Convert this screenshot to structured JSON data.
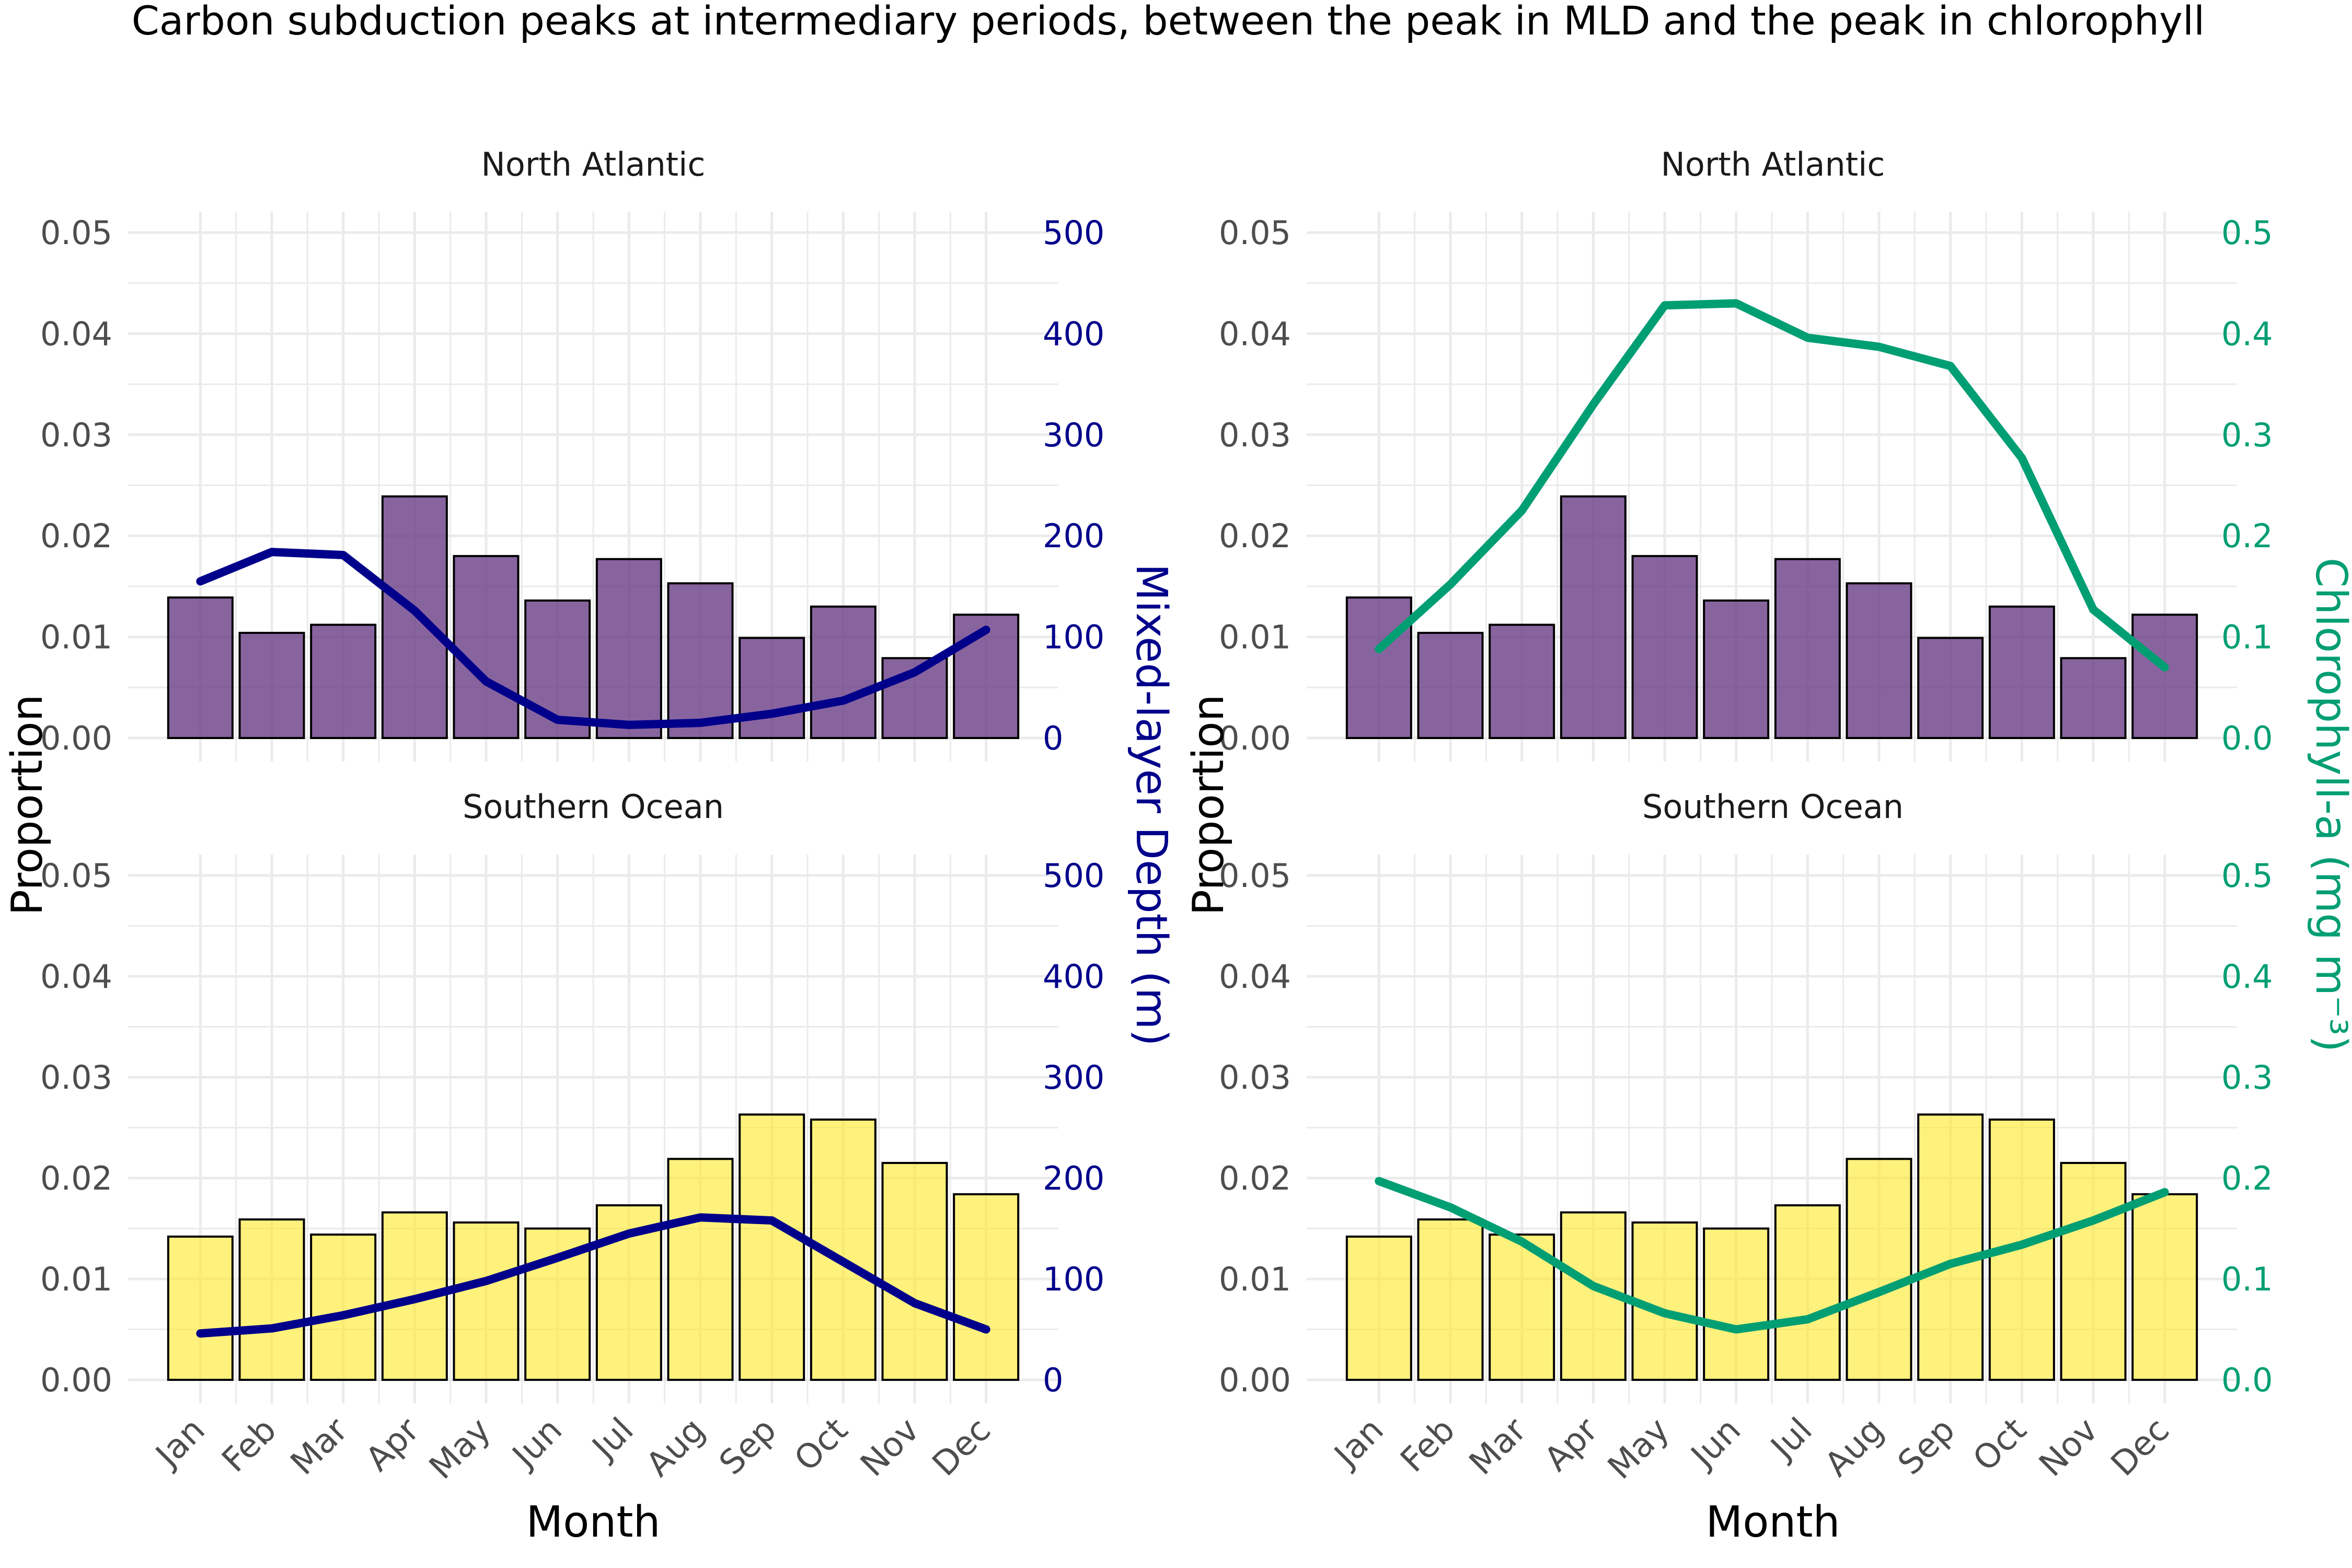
{
  "title": "Carbon subduction peaks at intermediary periods, between the peak in MLD and the peak in chlorophyll",
  "colors": {
    "grid": "#ebebeb",
    "tick_text": "#4d4d4d",
    "title_text": "#000000",
    "mld_line": "#00008B",
    "chl_line": "#009E73",
    "bar_north_atlantic": "#6A3D87",
    "bar_southern_ocean": "#FDE725",
    "bar_outline": "#000000"
  },
  "chart_data": [
    {
      "type": "bar",
      "panel": "left",
      "xlabel": "Month",
      "ylabel": "Proportion",
      "secondary_ylabel": "Mixed-layer Depth (m)",
      "categories": [
        "Jan",
        "Feb",
        "Mar",
        "Apr",
        "May",
        "Jun",
        "Jul",
        "Aug",
        "Sep",
        "Oct",
        "Nov",
        "Dec"
      ],
      "ylim": [
        0,
        0.05
      ],
      "yticks": [
        "0.00",
        "0.01",
        "0.02",
        "0.03",
        "0.04",
        "0.05"
      ],
      "secondary_ylim": [
        0,
        500
      ],
      "secondary_yticks": [
        "0",
        "100",
        "200",
        "300",
        "400",
        "500"
      ],
      "facets": [
        {
          "name": "North Atlantic",
          "values": [
            0.0139,
            0.0104,
            0.0112,
            0.0239,
            0.018,
            0.0136,
            0.0177,
            0.0153,
            0.0099,
            0.013,
            0.0079,
            0.0122
          ],
          "line": [
            155,
            184,
            181,
            126,
            56,
            18,
            13,
            15,
            24,
            37,
            65,
            107
          ]
        },
        {
          "name": "Southern Ocean",
          "values": [
            0.0142,
            0.0159,
            0.0144,
            0.0166,
            0.0156,
            0.015,
            0.0173,
            0.0219,
            0.0263,
            0.0258,
            0.0215,
            0.0184
          ],
          "line": [
            46,
            51,
            64,
            80,
            98,
            121,
            145,
            161,
            158,
            117,
            76,
            50
          ]
        }
      ]
    },
    {
      "type": "bar",
      "panel": "right",
      "xlabel": "Month",
      "ylabel": "Proportion",
      "secondary_ylabel": "Chlorophyll-a (mg m⁻³)",
      "categories": [
        "Jan",
        "Feb",
        "Mar",
        "Apr",
        "May",
        "Jun",
        "Jul",
        "Aug",
        "Sep",
        "Oct",
        "Nov",
        "Dec"
      ],
      "ylim": [
        0,
        0.05
      ],
      "yticks": [
        "0.00",
        "0.01",
        "0.02",
        "0.03",
        "0.04",
        "0.05"
      ],
      "secondary_ylim": [
        0,
        0.5
      ],
      "secondary_yticks": [
        "0.0",
        "0.1",
        "0.2",
        "0.3",
        "0.4",
        "0.5"
      ],
      "facets": [
        {
          "name": "North Atlantic",
          "values": [
            0.0139,
            0.0104,
            0.0112,
            0.0239,
            0.018,
            0.0136,
            0.0177,
            0.0153,
            0.0099,
            0.013,
            0.0079,
            0.0122
          ],
          "line": [
            0.088,
            0.152,
            0.225,
            0.33,
            0.428,
            0.43,
            0.396,
            0.387,
            0.368,
            0.277,
            0.127,
            0.07
          ]
        },
        {
          "name": "Southern Ocean",
          "values": [
            0.0142,
            0.0159,
            0.0144,
            0.0166,
            0.0156,
            0.015,
            0.0173,
            0.0219,
            0.0263,
            0.0258,
            0.0215,
            0.0184
          ],
          "line": [
            0.197,
            0.171,
            0.137,
            0.093,
            0.066,
            0.05,
            0.06,
            0.087,
            0.115,
            0.134,
            0.158,
            0.186
          ]
        }
      ]
    }
  ]
}
